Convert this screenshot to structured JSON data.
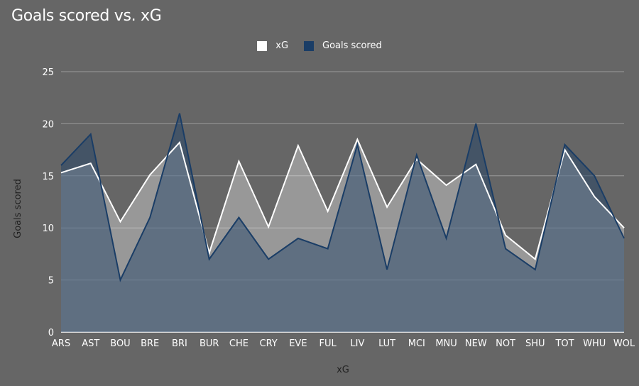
{
  "chart_data": {
    "type": "area",
    "title": "Goals scored vs. xG",
    "xlabel": "xG",
    "ylabel": "Goals scored",
    "categories": [
      "ARS",
      "AST",
      "BOU",
      "BRE",
      "BRI",
      "BUR",
      "CHE",
      "CRY",
      "EVE",
      "FUL",
      "LIV",
      "LUT",
      "MCI",
      "MNU",
      "NEW",
      "NOT",
      "SHU",
      "TOT",
      "WHU",
      "WOL"
    ],
    "ylim": [
      0,
      25
    ],
    "yticks": [
      0,
      5,
      10,
      15,
      20,
      25
    ],
    "grid": true,
    "legend_position": "top",
    "series": [
      {
        "name": "xG",
        "color": "#ffffff",
        "values": [
          15.3,
          16.2,
          10.6,
          15.1,
          18.2,
          7.6,
          16.4,
          10.1,
          17.9,
          11.6,
          18.5,
          12.0,
          16.6,
          14.1,
          16.1,
          9.3,
          7.0,
          17.5,
          13.0,
          10.0
        ]
      },
      {
        "name": "Goals scored",
        "color": "#1a3d66",
        "values": [
          16,
          19,
          5,
          11,
          21,
          7,
          11,
          7,
          9,
          8,
          18,
          6,
          17,
          9,
          20,
          8,
          6,
          18,
          15,
          9
        ]
      }
    ]
  }
}
